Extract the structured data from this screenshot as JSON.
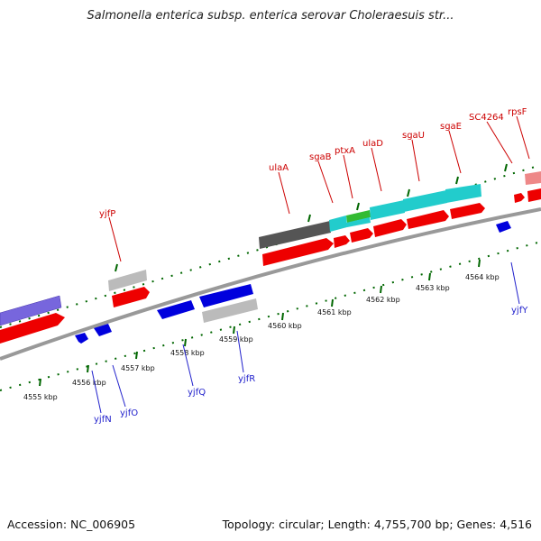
{
  "title": "Salmonella enterica subsp. enterica serovar Choleraesuis str...",
  "footer": {
    "accession": "Accession: NC_006905",
    "summary": "Topology: circular; Length: 4,755,700 bp; Genes: 4,516"
  },
  "colors": {
    "forward_gene": "#ee0000",
    "reverse_gene": "#0000dd",
    "rna_blue": "#7766dd",
    "pseudo_grey": "#bbbbbb",
    "dark_grey": "#555555",
    "cyan": "#22cccc",
    "green": "#33bb33",
    "pink": "#ee8888",
    "tick_green": "#006600",
    "backbone": "#999999"
  },
  "kbp_ticks": [
    {
      "label": "4555 kbp",
      "mb": 4555
    },
    {
      "label": "4556 kbp",
      "mb": 4556
    },
    {
      "label": "4557 kbp",
      "mb": 4557
    },
    {
      "label": "4558 kbp",
      "mb": 4558
    },
    {
      "label": "4559 kbp",
      "mb": 4559
    },
    {
      "label": "4560 kbp",
      "mb": 4560
    },
    {
      "label": "4561 kbp",
      "mb": 4561
    },
    {
      "label": "4562 kbp",
      "mb": 4562
    },
    {
      "label": "4563 kbp",
      "mb": 4563
    },
    {
      "label": "4564 kbp",
      "mb": 4564
    }
  ],
  "top_labels": [
    "yjfP",
    "ulaA",
    "sgaB",
    "ptxA",
    "ulaD",
    "sgaU",
    "sgaE",
    "SC4264",
    "rpsF"
  ],
  "bottom_labels": [
    "yjfN",
    "yjfO",
    "yjfQ",
    "yjfR",
    "yjfY"
  ]
}
